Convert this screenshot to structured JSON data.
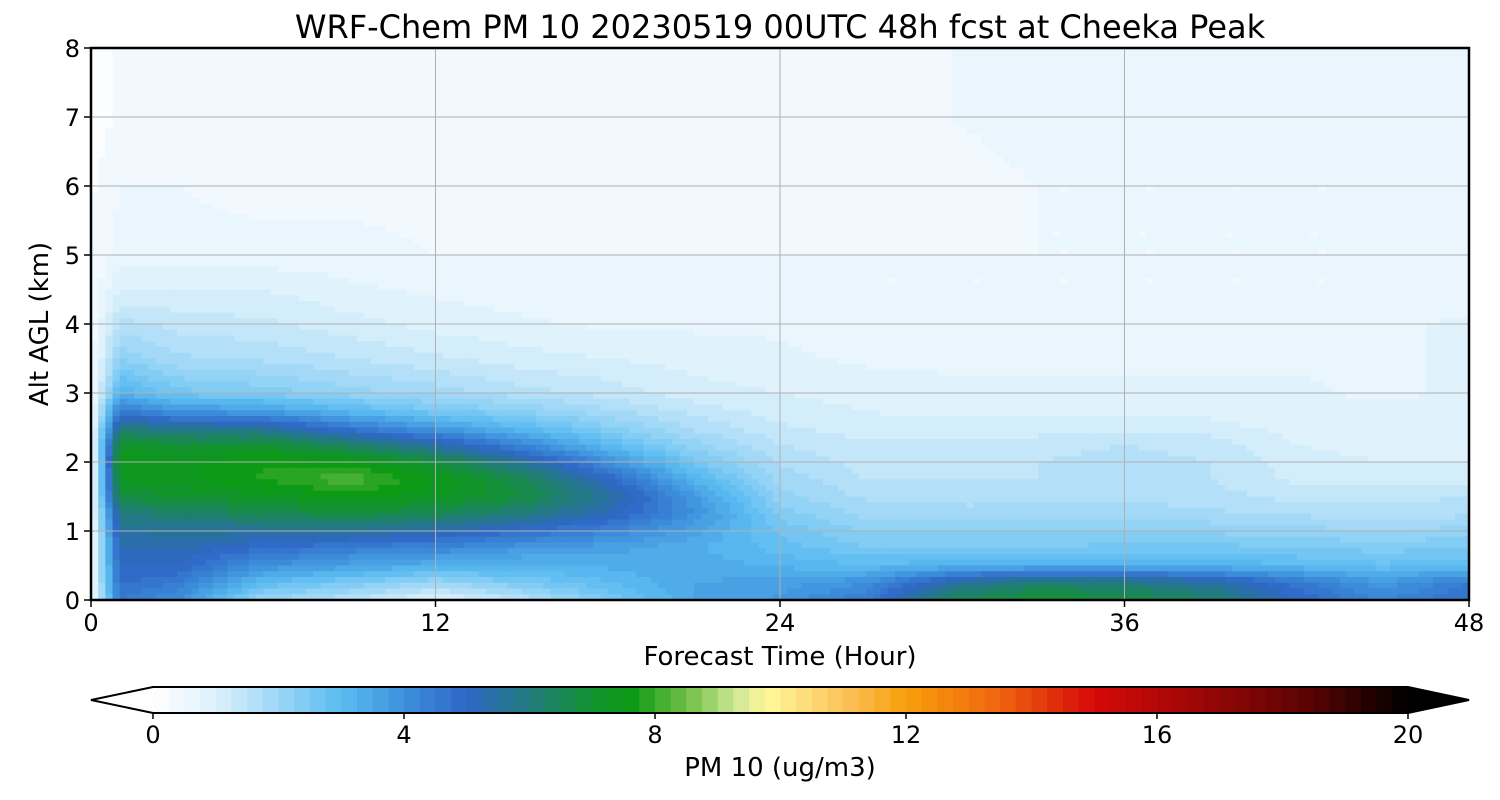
{
  "chart_data": {
    "type": "heatmap",
    "subtype": "filled-contour",
    "title": "WRF-Chem PM 10  20230519 00UTC 48h fcst at Cheeka Peak",
    "xlabel": "Forecast Time (Hour)",
    "ylabel": "Alt AGL (km)",
    "xlim": [
      0,
      48
    ],
    "ylim": [
      0,
      8
    ],
    "xticks": [
      0,
      12,
      24,
      36,
      48
    ],
    "yticks": [
      0,
      1,
      2,
      3,
      4,
      5,
      6,
      7,
      8
    ],
    "grid": true,
    "colorbar": {
      "label": "PM 10  (ug/m3)",
      "orientation": "horizontal",
      "placement": "bottom",
      "range": [
        0,
        20
      ],
      "ticks": [
        0,
        4,
        8,
        12,
        16,
        20
      ],
      "extend": "both",
      "color_stops": [
        {
          "value": 0,
          "color": "#ffffff"
        },
        {
          "value": 1,
          "color": "#dcf0fb"
        },
        {
          "value": 2,
          "color": "#9bd6f6"
        },
        {
          "value": 3,
          "color": "#5bbcf1"
        },
        {
          "value": 4,
          "color": "#3e90dc"
        },
        {
          "value": 5,
          "color": "#2f66c6"
        },
        {
          "value": 6,
          "color": "#217a7c"
        },
        {
          "value": 7,
          "color": "#129230"
        },
        {
          "value": 7.6,
          "color": "#0a9a14"
        },
        {
          "value": 8.5,
          "color": "#6fbf46"
        },
        {
          "value": 9.3,
          "color": "#d0e896"
        },
        {
          "value": 9.8,
          "color": "#fff89a"
        },
        {
          "value": 11,
          "color": "#fbc25c"
        },
        {
          "value": 12,
          "color": "#f89f0c"
        },
        {
          "value": 13.5,
          "color": "#ef6410"
        },
        {
          "value": 15,
          "color": "#d60808"
        },
        {
          "value": 16.5,
          "color": "#a20707"
        },
        {
          "value": 18.5,
          "color": "#560303"
        },
        {
          "value": 20,
          "color": "#000000"
        }
      ]
    },
    "x": [
      0,
      1,
      3,
      6,
      9,
      12,
      15,
      18,
      21,
      24,
      27,
      30,
      33,
      36,
      39,
      42,
      45,
      48
    ],
    "y": [
      0,
      0.25,
      0.5,
      0.75,
      1,
      1.25,
      1.5,
      1.75,
      2,
      2.25,
      2.5,
      2.75,
      3,
      3.5,
      4,
      4.5,
      5,
      6,
      7,
      8
    ],
    "z": [
      [
        0.3,
        4.5,
        4.0,
        2.0,
        1.5,
        0.8,
        1.5,
        2.5,
        3.5,
        3.8,
        4.5,
        6.5,
        7.0,
        6.8,
        6.3,
        5.0,
        4.2,
        4.8
      ],
      [
        0.3,
        4.8,
        4.5,
        3.0,
        2.5,
        2.0,
        2.5,
        3.0,
        3.5,
        3.6,
        4.0,
        5.5,
        6.2,
        6.0,
        5.5,
        4.6,
        3.8,
        4.5
      ],
      [
        0.3,
        5.0,
        5.0,
        4.0,
        3.6,
        3.3,
        3.2,
        3.3,
        3.4,
        3.2,
        3.0,
        3.2,
        3.3,
        3.3,
        3.2,
        3.0,
        2.8,
        3.0
      ],
      [
        0.3,
        5.2,
        5.3,
        4.8,
        4.4,
        4.2,
        3.8,
        3.6,
        3.3,
        2.9,
        2.5,
        2.5,
        2.5,
        2.6,
        2.6,
        2.5,
        2.4,
        2.5
      ],
      [
        0.3,
        5.5,
        5.6,
        5.6,
        5.6,
        5.3,
        4.8,
        4.3,
        3.6,
        2.7,
        2.2,
        2.2,
        2.2,
        2.2,
        2.2,
        2.1,
        2.0,
        2.1
      ],
      [
        0.3,
        6.0,
        6.2,
        6.5,
        6.8,
        6.5,
        6.0,
        5.2,
        4.0,
        2.4,
        1.9,
        1.9,
        1.9,
        1.9,
        1.8,
        1.7,
        1.6,
        1.7
      ],
      [
        0.3,
        6.8,
        7.0,
        7.2,
        7.6,
        7.3,
        6.8,
        5.6,
        3.8,
        2.1,
        1.7,
        1.6,
        1.6,
        1.7,
        1.6,
        1.4,
        1.4,
        1.5
      ],
      [
        0.3,
        7.3,
        7.4,
        7.8,
        8.2,
        7.5,
        6.6,
        5.0,
        3.2,
        1.9,
        1.5,
        1.5,
        1.5,
        1.6,
        1.5,
        1.2,
        1.2,
        1.2
      ],
      [
        0.3,
        7.5,
        7.4,
        7.7,
        7.6,
        6.9,
        5.6,
        4.0,
        2.6,
        1.7,
        1.4,
        1.4,
        1.5,
        1.6,
        1.5,
        1.1,
        1.0,
        1.0
      ],
      [
        0.3,
        7.2,
        6.9,
        7.0,
        6.3,
        5.4,
        4.2,
        3.0,
        2.1,
        1.5,
        1.3,
        1.3,
        1.4,
        1.5,
        1.4,
        1.0,
        0.9,
        0.9
      ],
      [
        0.3,
        6.0,
        5.6,
        5.5,
        4.5,
        3.7,
        3.0,
        2.3,
        1.7,
        1.3,
        1.1,
        1.1,
        1.1,
        1.2,
        1.1,
        0.9,
        0.8,
        0.8
      ],
      [
        0.3,
        4.5,
        3.8,
        3.6,
        3.0,
        2.5,
        2.2,
        1.8,
        1.4,
        1.1,
        1.0,
        0.9,
        0.9,
        0.9,
        0.9,
        0.8,
        0.8,
        0.8
      ],
      [
        0.3,
        3.2,
        2.6,
        2.4,
        2.1,
        1.9,
        1.6,
        1.4,
        1.1,
        1.0,
        0.9,
        0.8,
        0.8,
        0.8,
        0.8,
        0.8,
        0.7,
        0.8
      ],
      [
        0.3,
        2.2,
        1.8,
        1.7,
        1.5,
        1.3,
        1.1,
        1.0,
        0.9,
        0.8,
        0.7,
        0.7,
        0.7,
        0.7,
        0.7,
        0.7,
        0.7,
        0.8
      ],
      [
        0.3,
        1.6,
        1.4,
        1.3,
        1.1,
        0.9,
        0.8,
        0.7,
        0.7,
        0.7,
        0.6,
        0.6,
        0.6,
        0.6,
        0.6,
        0.6,
        0.7,
        0.8
      ],
      [
        0.3,
        1.0,
        1.0,
        1.0,
        0.8,
        0.7,
        0.6,
        0.6,
        0.6,
        0.6,
        0.5,
        0.5,
        0.5,
        0.5,
        0.5,
        0.5,
        0.5,
        0.6
      ],
      [
        0.3,
        0.6,
        0.6,
        0.6,
        0.6,
        0.5,
        0.5,
        0.5,
        0.5,
        0.5,
        0.5,
        0.5,
        0.5,
        0.5,
        0.5,
        0.5,
        0.5,
        0.5
      ],
      [
        0.2,
        0.5,
        0.5,
        0.4,
        0.4,
        0.4,
        0.4,
        0.4,
        0.4,
        0.4,
        0.4,
        0.4,
        0.5,
        0.5,
        0.5,
        0.5,
        0.5,
        0.6
      ],
      [
        0.1,
        0.3,
        0.3,
        0.3,
        0.3,
        0.3,
        0.3,
        0.4,
        0.4,
        0.4,
        0.5,
        0.5,
        0.6,
        0.6,
        0.6,
        0.6,
        0.6,
        0.6
      ],
      [
        0.1,
        0.3,
        0.3,
        0.3,
        0.3,
        0.3,
        0.3,
        0.3,
        0.4,
        0.4,
        0.4,
        0.5,
        0.6,
        0.6,
        0.6,
        0.6,
        0.6,
        0.7
      ]
    ]
  }
}
